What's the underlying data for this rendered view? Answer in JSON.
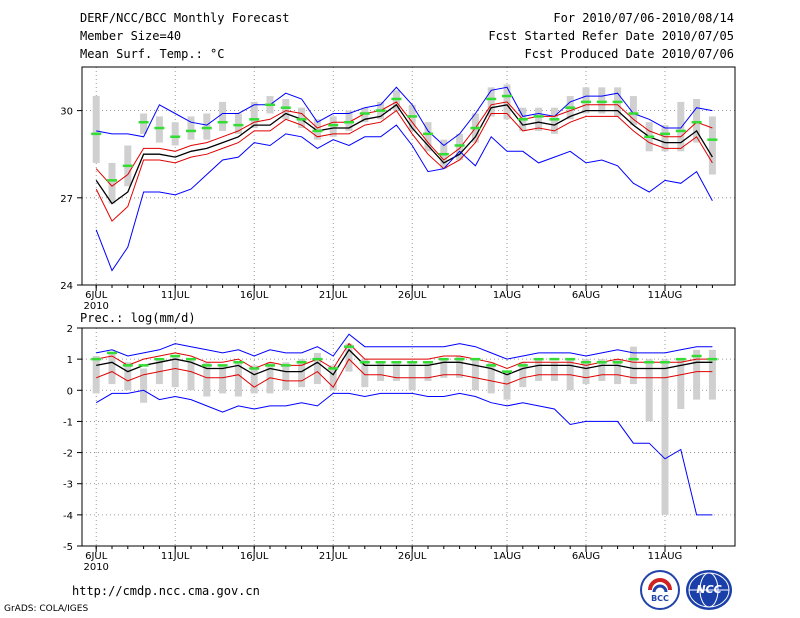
{
  "header": {
    "title": "DERF/NCC/BCC Monthly Forecast",
    "member": "Member Size=40",
    "variable": "Mean Surf. Temp.: °C",
    "period": "For 2010/07/06-2010/08/14",
    "started": "Fcst Started Refer Date 2010/07/05",
    "produced": "Fcst Produced Date 2010/07/06"
  },
  "footer": {
    "url": "http://cmdp.ncc.cma.gov.cn",
    "grads": "GrADS: COLA/IGES",
    "logo_left": "BCC",
    "logo_right": "NCC"
  },
  "colors": {
    "max_min": "#0000ff",
    "spread": "#e00000",
    "mean": "#000000",
    "marker": "#33dd33",
    "bar": "#d0d0d0",
    "grid": "#808080"
  },
  "chart_data": [
    {
      "type": "line",
      "name": "temperature",
      "title": "Mean Surf. Temp.: °C",
      "ylabel": "°C",
      "ylim": [
        24,
        31.5
      ],
      "yticks": [
        24,
        27,
        30
      ],
      "x_start_day": 0,
      "xticks": [
        {
          "day": 0,
          "label": "6JUL",
          "sublabel": "2010"
        },
        {
          "day": 5,
          "label": "11JUL"
        },
        {
          "day": 10,
          "label": "16JUL"
        },
        {
          "day": 15,
          "label": "21JUL"
        },
        {
          "day": 20,
          "label": "26JUL"
        },
        {
          "day": 26,
          "label": "1AUG"
        },
        {
          "day": 31,
          "label": "6AUG"
        },
        {
          "day": 36,
          "label": "11AUG"
        }
      ],
      "series": [
        {
          "name": "max",
          "color_key": "max_min",
          "values": [
            29.3,
            29.2,
            29.2,
            29.1,
            30.2,
            29.9,
            29.6,
            29.5,
            29.9,
            29.9,
            30.2,
            30.2,
            30.6,
            30.4,
            29.6,
            29.9,
            29.9,
            30.1,
            30.2,
            30.8,
            30.2,
            29.3,
            28.8,
            29.2,
            29.9,
            30.7,
            30.8,
            29.8,
            29.9,
            29.8,
            30.3,
            30.5,
            30.5,
            30.6,
            29.9,
            29.7,
            29.4,
            29.4,
            30.1,
            30.0
          ]
        },
        {
          "name": "spread_high",
          "color_key": "spread",
          "values": [
            28.0,
            27.4,
            27.8,
            28.7,
            28.7,
            28.6,
            28.8,
            28.9,
            29.1,
            29.3,
            29.6,
            29.7,
            30.0,
            29.9,
            29.4,
            29.6,
            29.6,
            29.9,
            30.0,
            30.3,
            29.6,
            28.9,
            28.3,
            28.7,
            29.4,
            30.2,
            30.3,
            29.7,
            29.8,
            29.8,
            30.0,
            30.2,
            30.2,
            30.2,
            29.7,
            29.3,
            29.1,
            29.1,
            29.6,
            29.4
          ]
        },
        {
          "name": "mean",
          "color_key": "mean",
          "values": [
            27.6,
            26.8,
            27.2,
            28.5,
            28.5,
            28.4,
            28.6,
            28.7,
            28.9,
            29.1,
            29.5,
            29.5,
            29.9,
            29.7,
            29.3,
            29.4,
            29.4,
            29.7,
            29.8,
            30.2,
            29.4,
            28.8,
            28.2,
            28.5,
            29.1,
            30.1,
            30.2,
            29.5,
            29.6,
            29.5,
            29.8,
            30.0,
            30.0,
            30.0,
            29.5,
            29.1,
            28.9,
            28.9,
            29.3,
            28.4
          ]
        },
        {
          "name": "spread_low",
          "color_key": "spread",
          "values": [
            27.3,
            26.2,
            26.7,
            28.3,
            28.3,
            28.2,
            28.4,
            28.5,
            28.7,
            28.9,
            29.3,
            29.3,
            29.7,
            29.5,
            29.1,
            29.2,
            29.2,
            29.5,
            29.6,
            30.0,
            29.2,
            28.5,
            28.0,
            28.3,
            28.9,
            29.9,
            29.9,
            29.3,
            29.4,
            29.3,
            29.6,
            29.8,
            29.8,
            29.8,
            29.3,
            28.9,
            28.7,
            28.7,
            29.1,
            28.2
          ]
        },
        {
          "name": "min",
          "color_key": "max_min",
          "values": [
            25.9,
            24.5,
            25.3,
            27.2,
            27.2,
            27.1,
            27.3,
            27.8,
            28.3,
            28.4,
            28.9,
            28.8,
            29.2,
            29.1,
            28.7,
            29.0,
            28.8,
            29.1,
            29.1,
            29.5,
            28.8,
            27.9,
            28.0,
            28.6,
            28.1,
            29.1,
            28.6,
            28.6,
            28.2,
            28.4,
            28.6,
            28.2,
            28.3,
            28.1,
            27.5,
            27.2,
            27.6,
            27.5,
            27.9,
            26.9
          ]
        }
      ],
      "markers": [
        29.2,
        27.6,
        28.1,
        29.6,
        29.4,
        29.1,
        29.3,
        29.4,
        29.6,
        29.5,
        29.7,
        30.2,
        30.1,
        29.7,
        29.3,
        29.5,
        29.6,
        29.9,
        30.0,
        30.4,
        29.8,
        29.2,
        28.5,
        28.8,
        29.4,
        30.4,
        30.5,
        29.7,
        29.8,
        29.7,
        30.1,
        30.3,
        30.3,
        30.3,
        29.9,
        29.1,
        29.2,
        29.3,
        29.6,
        29.0
      ],
      "bars": [
        [
          28.2,
          30.5
        ],
        [
          26.8,
          28.2
        ],
        [
          27.4,
          28.8
        ],
        [
          29.2,
          29.9
        ],
        [
          28.9,
          29.8
        ],
        [
          28.8,
          29.6
        ],
        [
          29.0,
          29.8
        ],
        [
          29.0,
          29.9
        ],
        [
          29.3,
          30.3
        ],
        [
          29.2,
          29.9
        ],
        [
          29.4,
          30.3
        ],
        [
          29.9,
          30.5
        ],
        [
          29.7,
          30.4
        ],
        [
          29.4,
          30.1
        ],
        [
          29.0,
          29.7
        ],
        [
          29.1,
          29.8
        ],
        [
          29.3,
          30.0
        ],
        [
          29.6,
          30.1
        ],
        [
          29.7,
          30.3
        ],
        [
          30.0,
          30.7
        ],
        [
          29.3,
          30.2
        ],
        [
          28.6,
          29.6
        ],
        [
          28.0,
          29.0
        ],
        [
          28.3,
          29.2
        ],
        [
          28.9,
          29.9
        ],
        [
          29.8,
          30.8
        ],
        [
          29.7,
          30.9
        ],
        [
          29.3,
          30.1
        ],
        [
          29.3,
          30.1
        ],
        [
          29.2,
          30.1
        ],
        [
          29.7,
          30.5
        ],
        [
          29.9,
          30.8
        ],
        [
          29.9,
          30.8
        ],
        [
          29.8,
          30.8
        ],
        [
          29.5,
          30.5
        ],
        [
          28.6,
          29.6
        ],
        [
          28.6,
          29.5
        ],
        [
          28.6,
          30.3
        ],
        [
          28.9,
          30.4
        ],
        [
          27.8,
          29.8
        ]
      ]
    },
    {
      "type": "line",
      "name": "precipitation",
      "title": "Prec.: log(mm/d)",
      "ylabel": "log(mm/d)",
      "ylim": [
        -5,
        2
      ],
      "yticks": [
        -5,
        -4,
        -3,
        -2,
        -1,
        0,
        1,
        2
      ],
      "x_start_day": 0,
      "xticks": [
        {
          "day": 0,
          "label": "6JUL",
          "sublabel": "2010"
        },
        {
          "day": 5,
          "label": "11JUL"
        },
        {
          "day": 10,
          "label": "16JUL"
        },
        {
          "day": 15,
          "label": "21JUL"
        },
        {
          "day": 20,
          "label": "26JUL"
        },
        {
          "day": 26,
          "label": "1AUG"
        },
        {
          "day": 31,
          "label": "6AUG"
        },
        {
          "day": 36,
          "label": "11AUG"
        }
      ],
      "series": [
        {
          "name": "max",
          "color_key": "max_min",
          "values": [
            1.2,
            1.3,
            1.1,
            1.2,
            1.3,
            1.5,
            1.4,
            1.3,
            1.2,
            1.3,
            1.1,
            1.3,
            1.2,
            1.2,
            1.4,
            1.1,
            1.8,
            1.4,
            1.4,
            1.4,
            1.4,
            1.4,
            1.4,
            1.5,
            1.4,
            1.2,
            1.0,
            1.1,
            1.2,
            1.2,
            1.2,
            1.1,
            1.2,
            1.3,
            1.2,
            1.2,
            1.2,
            1.3,
            1.4,
            1.4
          ]
        },
        {
          "name": "spread_high",
          "color_key": "spread",
          "values": [
            1.0,
            1.1,
            0.8,
            1.0,
            1.1,
            1.2,
            1.1,
            0.9,
            0.9,
            1.0,
            0.7,
            0.9,
            0.8,
            0.8,
            1.0,
            0.7,
            1.5,
            1.0,
            1.0,
            1.0,
            1.0,
            1.0,
            1.1,
            1.1,
            1.0,
            0.9,
            0.7,
            0.9,
            0.9,
            0.9,
            0.9,
            0.8,
            0.9,
            1.0,
            0.9,
            0.9,
            0.9,
            0.9,
            1.0,
            1.0
          ]
        },
        {
          "name": "mean",
          "color_key": "mean",
          "values": [
            0.8,
            0.9,
            0.6,
            0.8,
            0.9,
            1.0,
            0.9,
            0.7,
            0.7,
            0.8,
            0.5,
            0.7,
            0.6,
            0.6,
            0.9,
            0.5,
            1.3,
            0.8,
            0.8,
            0.8,
            0.8,
            0.8,
            0.9,
            0.9,
            0.8,
            0.7,
            0.5,
            0.7,
            0.8,
            0.8,
            0.8,
            0.7,
            0.8,
            0.8,
            0.7,
            0.7,
            0.7,
            0.8,
            0.9,
            0.9
          ]
        },
        {
          "name": "spread_low",
          "color_key": "spread",
          "values": [
            0.4,
            0.6,
            0.3,
            0.5,
            0.6,
            0.7,
            0.6,
            0.4,
            0.4,
            0.5,
            0.1,
            0.4,
            0.3,
            0.3,
            0.6,
            0.1,
            1.0,
            0.5,
            0.5,
            0.4,
            0.4,
            0.4,
            0.5,
            0.5,
            0.4,
            0.3,
            0.2,
            0.4,
            0.5,
            0.5,
            0.5,
            0.4,
            0.5,
            0.5,
            0.4,
            0.4,
            0.4,
            0.5,
            0.6,
            0.6
          ]
        },
        {
          "name": "min",
          "color_key": "max_min",
          "values": [
            -0.4,
            -0.1,
            -0.1,
            0.0,
            -0.3,
            -0.2,
            -0.3,
            -0.5,
            -0.7,
            -0.5,
            -0.6,
            -0.5,
            -0.5,
            -0.4,
            -0.5,
            -0.1,
            -0.1,
            -0.2,
            -0.1,
            -0.1,
            -0.1,
            -0.2,
            -0.2,
            -0.1,
            -0.2,
            -0.4,
            -0.5,
            -0.4,
            -0.5,
            -0.6,
            -1.1,
            -1.0,
            -1.0,
            -1.0,
            -1.7,
            -1.7,
            -2.2,
            -1.9,
            -4.0,
            -4.0
          ]
        }
      ],
      "markers": [
        1.0,
        1.2,
        0.8,
        0.8,
        1.0,
        1.1,
        1.0,
        0.8,
        0.8,
        0.9,
        0.7,
        0.8,
        0.8,
        0.9,
        1.0,
        0.7,
        1.4,
        0.9,
        0.9,
        0.9,
        0.9,
        0.9,
        1.0,
        1.0,
        1.0,
        0.8,
        0.6,
        0.8,
        1.0,
        1.0,
        1.0,
        0.9,
        0.9,
        0.9,
        1.0,
        0.9,
        0.9,
        1.0,
        1.1,
        1.0
      ],
      "bars": [
        [
          -0.1,
          1.1
        ],
        [
          0.2,
          1.2
        ],
        [
          0.0,
          0.9
        ],
        [
          -0.4,
          0.7
        ],
        [
          0.2,
          1.0
        ],
        [
          0.1,
          1.1
        ],
        [
          0.0,
          1.0
        ],
        [
          -0.2,
          0.9
        ],
        [
          -0.1,
          0.8
        ],
        [
          -0.2,
          0.9
        ],
        [
          -0.1,
          0.8
        ],
        [
          -0.1,
          0.9
        ],
        [
          0.0,
          0.9
        ],
        [
          0.1,
          1.0
        ],
        [
          0.2,
          1.2
        ],
        [
          0.0,
          0.8
        ],
        [
          0.6,
          1.5
        ],
        [
          0.1,
          1.0
        ],
        [
          0.3,
          0.9
        ],
        [
          0.3,
          0.9
        ],
        [
          0.0,
          0.9
        ],
        [
          0.3,
          0.9
        ],
        [
          0.4,
          1.0
        ],
        [
          0.4,
          1.1
        ],
        [
          0.0,
          1.0
        ],
        [
          -0.1,
          0.9
        ],
        [
          -0.3,
          0.6
        ],
        [
          0.1,
          0.9
        ],
        [
          0.3,
          1.0
        ],
        [
          0.3,
          0.9
        ],
        [
          0.0,
          1.0
        ],
        [
          0.2,
          1.0
        ],
        [
          0.3,
          1.0
        ],
        [
          0.2,
          1.0
        ],
        [
          0.2,
          1.4
        ],
        [
          -1.0,
          1.0
        ],
        [
          -4.0,
          1.0
        ],
        [
          -0.6,
          1.0
        ],
        [
          -0.3,
          1.3
        ],
        [
          -0.3,
          1.3
        ]
      ]
    }
  ]
}
